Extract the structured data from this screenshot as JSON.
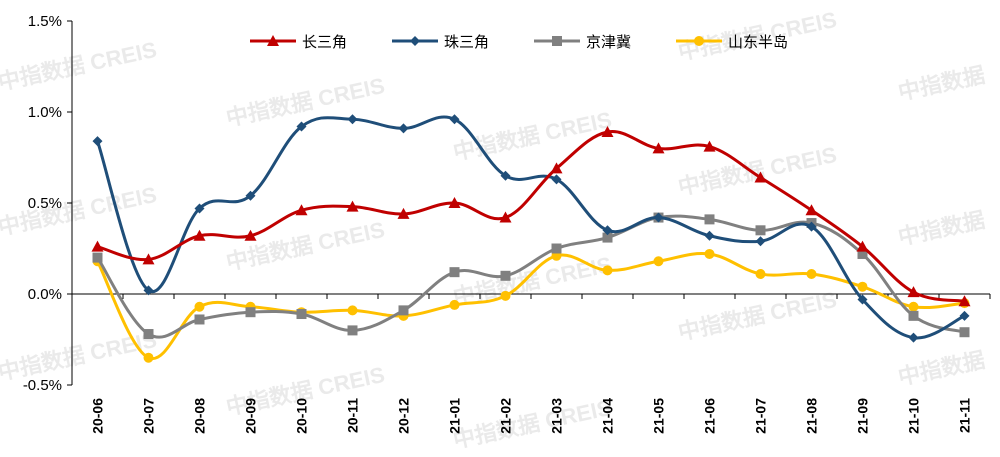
{
  "chart_data": {
    "type": "line",
    "title": "",
    "xlabel": "",
    "ylabel": "",
    "categories": [
      "20-06",
      "20-07",
      "20-08",
      "20-09",
      "20-10",
      "20-11",
      "20-12",
      "21-01",
      "21-02",
      "21-03",
      "21-04",
      "21-05",
      "21-06",
      "21-07",
      "21-08",
      "21-09",
      "21-10",
      "21-11"
    ],
    "ylim": [
      -0.5,
      1.5
    ],
    "yticks": [
      -0.5,
      0.0,
      0.5,
      1.0,
      1.5
    ],
    "ytick_labels": [
      "-0.5%",
      "0.0%",
      "0.5%",
      "1.0%",
      "1.5%"
    ],
    "grid": false,
    "legend_position": "top",
    "series": [
      {
        "name": "长三角",
        "color": "#c00000",
        "marker": "triangle",
        "values": [
          0.26,
          0.19,
          0.32,
          0.32,
          0.46,
          0.48,
          0.44,
          0.5,
          0.42,
          0.69,
          0.89,
          0.8,
          0.81,
          0.64,
          0.46,
          0.26,
          0.01,
          -0.04
        ]
      },
      {
        "name": "珠三角",
        "color": "#1f4e79",
        "marker": "diamond",
        "values": [
          0.84,
          0.02,
          0.47,
          0.54,
          0.92,
          0.96,
          0.91,
          0.96,
          0.65,
          0.63,
          0.35,
          0.42,
          0.32,
          0.29,
          0.37,
          -0.03,
          -0.24,
          -0.12
        ]
      },
      {
        "name": "京津冀",
        "color": "#808080",
        "marker": "square",
        "values": [
          0.2,
          -0.22,
          -0.14,
          -0.1,
          -0.11,
          -0.2,
          -0.09,
          0.12,
          0.1,
          0.25,
          0.31,
          0.42,
          0.41,
          0.35,
          0.39,
          0.22,
          -0.12,
          -0.21
        ]
      },
      {
        "name": "山东半岛",
        "color": "#ffc000",
        "marker": "circle",
        "values": [
          0.18,
          -0.35,
          -0.07,
          -0.07,
          -0.1,
          -0.09,
          -0.12,
          -0.06,
          -0.01,
          0.21,
          0.13,
          0.18,
          0.22,
          0.11,
          0.11,
          0.04,
          -0.07,
          -0.05
        ]
      }
    ]
  },
  "watermark": {
    "text": "中指数据 CREIS",
    "short_text": "中指数据",
    "color": "#d9d9d9"
  }
}
